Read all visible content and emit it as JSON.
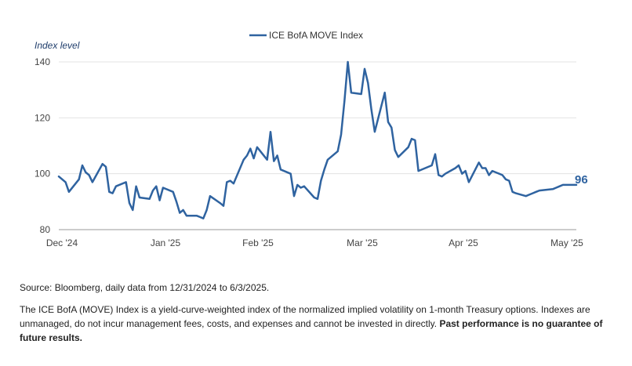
{
  "chart_data": {
    "type": "line",
    "title": "",
    "ylabel": "Index level",
    "xlabel": "",
    "ylim": [
      80,
      140
    ],
    "yticks": [
      "80",
      "100",
      "120",
      "140"
    ],
    "grid": "horizontal",
    "legend_position": "top-center",
    "x_tick_labels": [
      "Dec '24",
      "Jan '25",
      "Feb '25",
      "Mar '25",
      "Apr '25",
      "May '25"
    ],
    "end_label": "96",
    "series": [
      {
        "name": "ICE BofA MOVE Index",
        "color": "#2f63a0",
        "x": [
          "2024-12-31",
          "2025-01-02",
          "2025-01-03",
          "2025-01-06",
          "2025-01-07",
          "2025-01-08",
          "2025-01-09",
          "2025-01-10",
          "2025-01-13",
          "2025-01-14",
          "2025-01-15",
          "2025-01-16",
          "2025-01-17",
          "2025-01-20",
          "2025-01-21",
          "2025-01-22",
          "2025-01-23",
          "2025-01-24",
          "2025-01-27",
          "2025-01-28",
          "2025-01-29",
          "2025-01-30",
          "2025-01-31",
          "2025-02-03",
          "2025-02-04",
          "2025-02-05",
          "2025-02-06",
          "2025-02-07",
          "2025-02-10",
          "2025-02-11",
          "2025-02-12",
          "2025-02-13",
          "2025-02-14",
          "2025-02-17",
          "2025-02-18",
          "2025-02-19",
          "2025-02-20",
          "2025-02-21",
          "2025-02-24",
          "2025-02-25",
          "2025-02-26",
          "2025-02-27",
          "2025-02-28",
          "2025-03-03",
          "2025-03-04",
          "2025-03-05",
          "2025-03-06",
          "2025-03-07",
          "2025-03-10",
          "2025-03-11",
          "2025-03-12",
          "2025-03-13",
          "2025-03-14",
          "2025-03-17",
          "2025-03-18",
          "2025-03-19",
          "2025-03-20",
          "2025-03-21",
          "2025-03-24",
          "2025-03-25",
          "2025-03-26",
          "2025-03-27",
          "2025-03-28",
          "2025-03-31",
          "2025-04-01",
          "2025-04-02",
          "2025-04-03",
          "2025-04-04",
          "2025-04-07",
          "2025-04-08",
          "2025-04-09",
          "2025-04-10",
          "2025-04-11",
          "2025-04-14",
          "2025-04-15",
          "2025-04-16",
          "2025-04-17",
          "2025-04-21",
          "2025-04-22",
          "2025-04-23",
          "2025-04-24",
          "2025-04-25",
          "2025-04-28",
          "2025-04-29",
          "2025-04-30",
          "2025-05-01",
          "2025-05-02",
          "2025-05-05",
          "2025-05-06",
          "2025-05-07",
          "2025-05-08",
          "2025-05-09",
          "2025-05-12",
          "2025-05-13",
          "2025-05-14",
          "2025-05-15",
          "2025-05-16",
          "2025-05-19",
          "2025-05-20",
          "2025-05-21",
          "2025-05-22",
          "2025-05-23",
          "2025-05-27",
          "2025-05-28",
          "2025-05-29",
          "2025-05-30",
          "2025-06-02",
          "2025-06-03"
        ],
        "values": [
          99,
          97,
          93.5,
          98,
          103,
          100.5,
          99.5,
          97,
          103.5,
          102.5,
          93.5,
          93,
          95.5,
          97,
          89.5,
          87,
          95.5,
          91.5,
          91,
          94,
          95.5,
          90.5,
          95,
          93.5,
          90,
          86,
          87,
          85,
          85,
          84.5,
          84,
          87,
          92,
          89.5,
          88.5,
          97,
          97.5,
          96.5,
          105,
          106.5,
          109,
          105.5,
          109.5,
          105,
          115,
          104.5,
          106.5,
          101.5,
          100,
          92,
          96,
          95,
          95.5,
          91.5,
          91,
          97.5,
          101.5,
          105,
          108,
          114,
          126,
          140,
          129,
          128.5,
          137.5,
          132.5,
          123,
          115,
          129,
          118.5,
          116.5,
          108.5,
          106,
          109.5,
          112.5,
          112,
          101,
          103,
          107,
          99.5,
          99,
          100,
          102,
          103,
          100,
          101,
          97,
          104,
          102,
          102,
          99.5,
          101,
          99.5,
          98,
          97.5,
          93.5,
          93,
          92,
          92.5,
          93,
          93.5,
          94,
          94.5,
          95,
          95.5,
          96,
          96,
          96
        ]
      }
    ]
  },
  "notes": {
    "source": "Source: Bloomberg, daily data from 12/31/2024 to 6/3/2025.",
    "description": "The ICE BofA (MOVE) Index is a yield-curve-weighted index of the normalized implied volatility on 1-month Treasury options. Indexes are unmanaged, do not incur management fees, costs, and expenses and cannot be invested in directly. ",
    "disclaimer": "Past performance is no guarantee of future results."
  }
}
